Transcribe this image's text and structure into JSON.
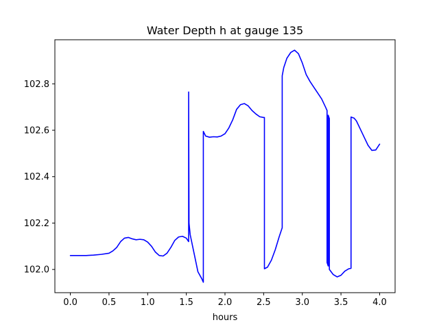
{
  "chart_data": {
    "type": "line",
    "title": "Water Depth h at gauge 135",
    "xlabel": "hours",
    "ylabel": "",
    "xlim": [
      -0.2,
      4.2
    ],
    "ylim": [
      101.9,
      102.99
    ],
    "x_ticks": [
      0.0,
      0.5,
      1.0,
      1.5,
      2.0,
      2.5,
      3.0,
      3.5,
      4.0
    ],
    "x_tick_labels": [
      "0.0",
      "0.5",
      "1.0",
      "1.5",
      "2.0",
      "2.5",
      "3.0",
      "3.5",
      "4.0"
    ],
    "y_ticks": [
      102.0,
      102.2,
      102.4,
      102.6,
      102.8
    ],
    "y_tick_labels": [
      "102.0",
      "102.2",
      "102.4",
      "102.6",
      "102.8"
    ],
    "grid": false,
    "legend": "none",
    "series": [
      {
        "color": "#0000ff",
        "x": [
          0.0,
          0.1,
          0.2,
          0.3,
          0.4,
          0.5,
          0.55,
          0.6,
          0.65,
          0.7,
          0.75,
          0.8,
          0.85,
          0.9,
          0.95,
          1.0,
          1.05,
          1.1,
          1.15,
          1.2,
          1.25,
          1.3,
          1.35,
          1.4,
          1.45,
          1.5,
          1.53,
          1.53,
          1.535,
          1.55,
          1.6,
          1.65,
          1.7,
          1.72,
          1.72,
          1.75,
          1.8,
          1.85,
          1.9,
          1.95,
          2.0,
          2.05,
          2.1,
          2.15,
          2.2,
          2.25,
          2.3,
          2.35,
          2.4,
          2.45,
          2.5,
          2.51,
          2.51,
          2.55,
          2.6,
          2.65,
          2.7,
          2.74,
          2.74,
          2.76,
          2.8,
          2.85,
          2.9,
          2.95,
          3.0,
          3.05,
          3.1,
          3.15,
          3.2,
          3.25,
          3.3,
          3.32,
          3.32,
          3.335,
          3.335,
          3.35,
          3.35,
          3.4,
          3.45,
          3.5,
          3.55,
          3.6,
          3.63,
          3.63,
          3.67,
          3.7,
          3.75,
          3.8,
          3.85,
          3.9,
          3.95,
          4.0
        ],
        "y": [
          102.06,
          102.06,
          102.06,
          102.062,
          102.065,
          102.07,
          102.08,
          102.095,
          102.12,
          102.135,
          102.138,
          102.132,
          102.128,
          102.13,
          102.128,
          102.118,
          102.1,
          102.075,
          102.06,
          102.058,
          102.07,
          102.095,
          102.125,
          102.14,
          102.143,
          102.135,
          102.12,
          102.765,
          102.2,
          102.15,
          102.07,
          101.99,
          101.96,
          101.945,
          102.595,
          102.575,
          102.57,
          102.572,
          102.571,
          102.575,
          102.585,
          102.61,
          102.645,
          102.69,
          102.71,
          102.715,
          102.705,
          102.685,
          102.67,
          102.658,
          102.655,
          102.655,
          102.003,
          102.01,
          102.04,
          102.085,
          102.14,
          102.18,
          102.835,
          102.87,
          102.91,
          102.935,
          102.945,
          102.93,
          102.89,
          102.84,
          102.81,
          102.785,
          102.76,
          102.735,
          102.7,
          102.685,
          102.03,
          102.015,
          102.665,
          102.65,
          102.0,
          101.978,
          101.968,
          101.975,
          101.993,
          102.003,
          102.005,
          102.657,
          102.652,
          102.64,
          102.605,
          102.57,
          102.535,
          102.513,
          102.515,
          102.54
        ]
      }
    ]
  }
}
